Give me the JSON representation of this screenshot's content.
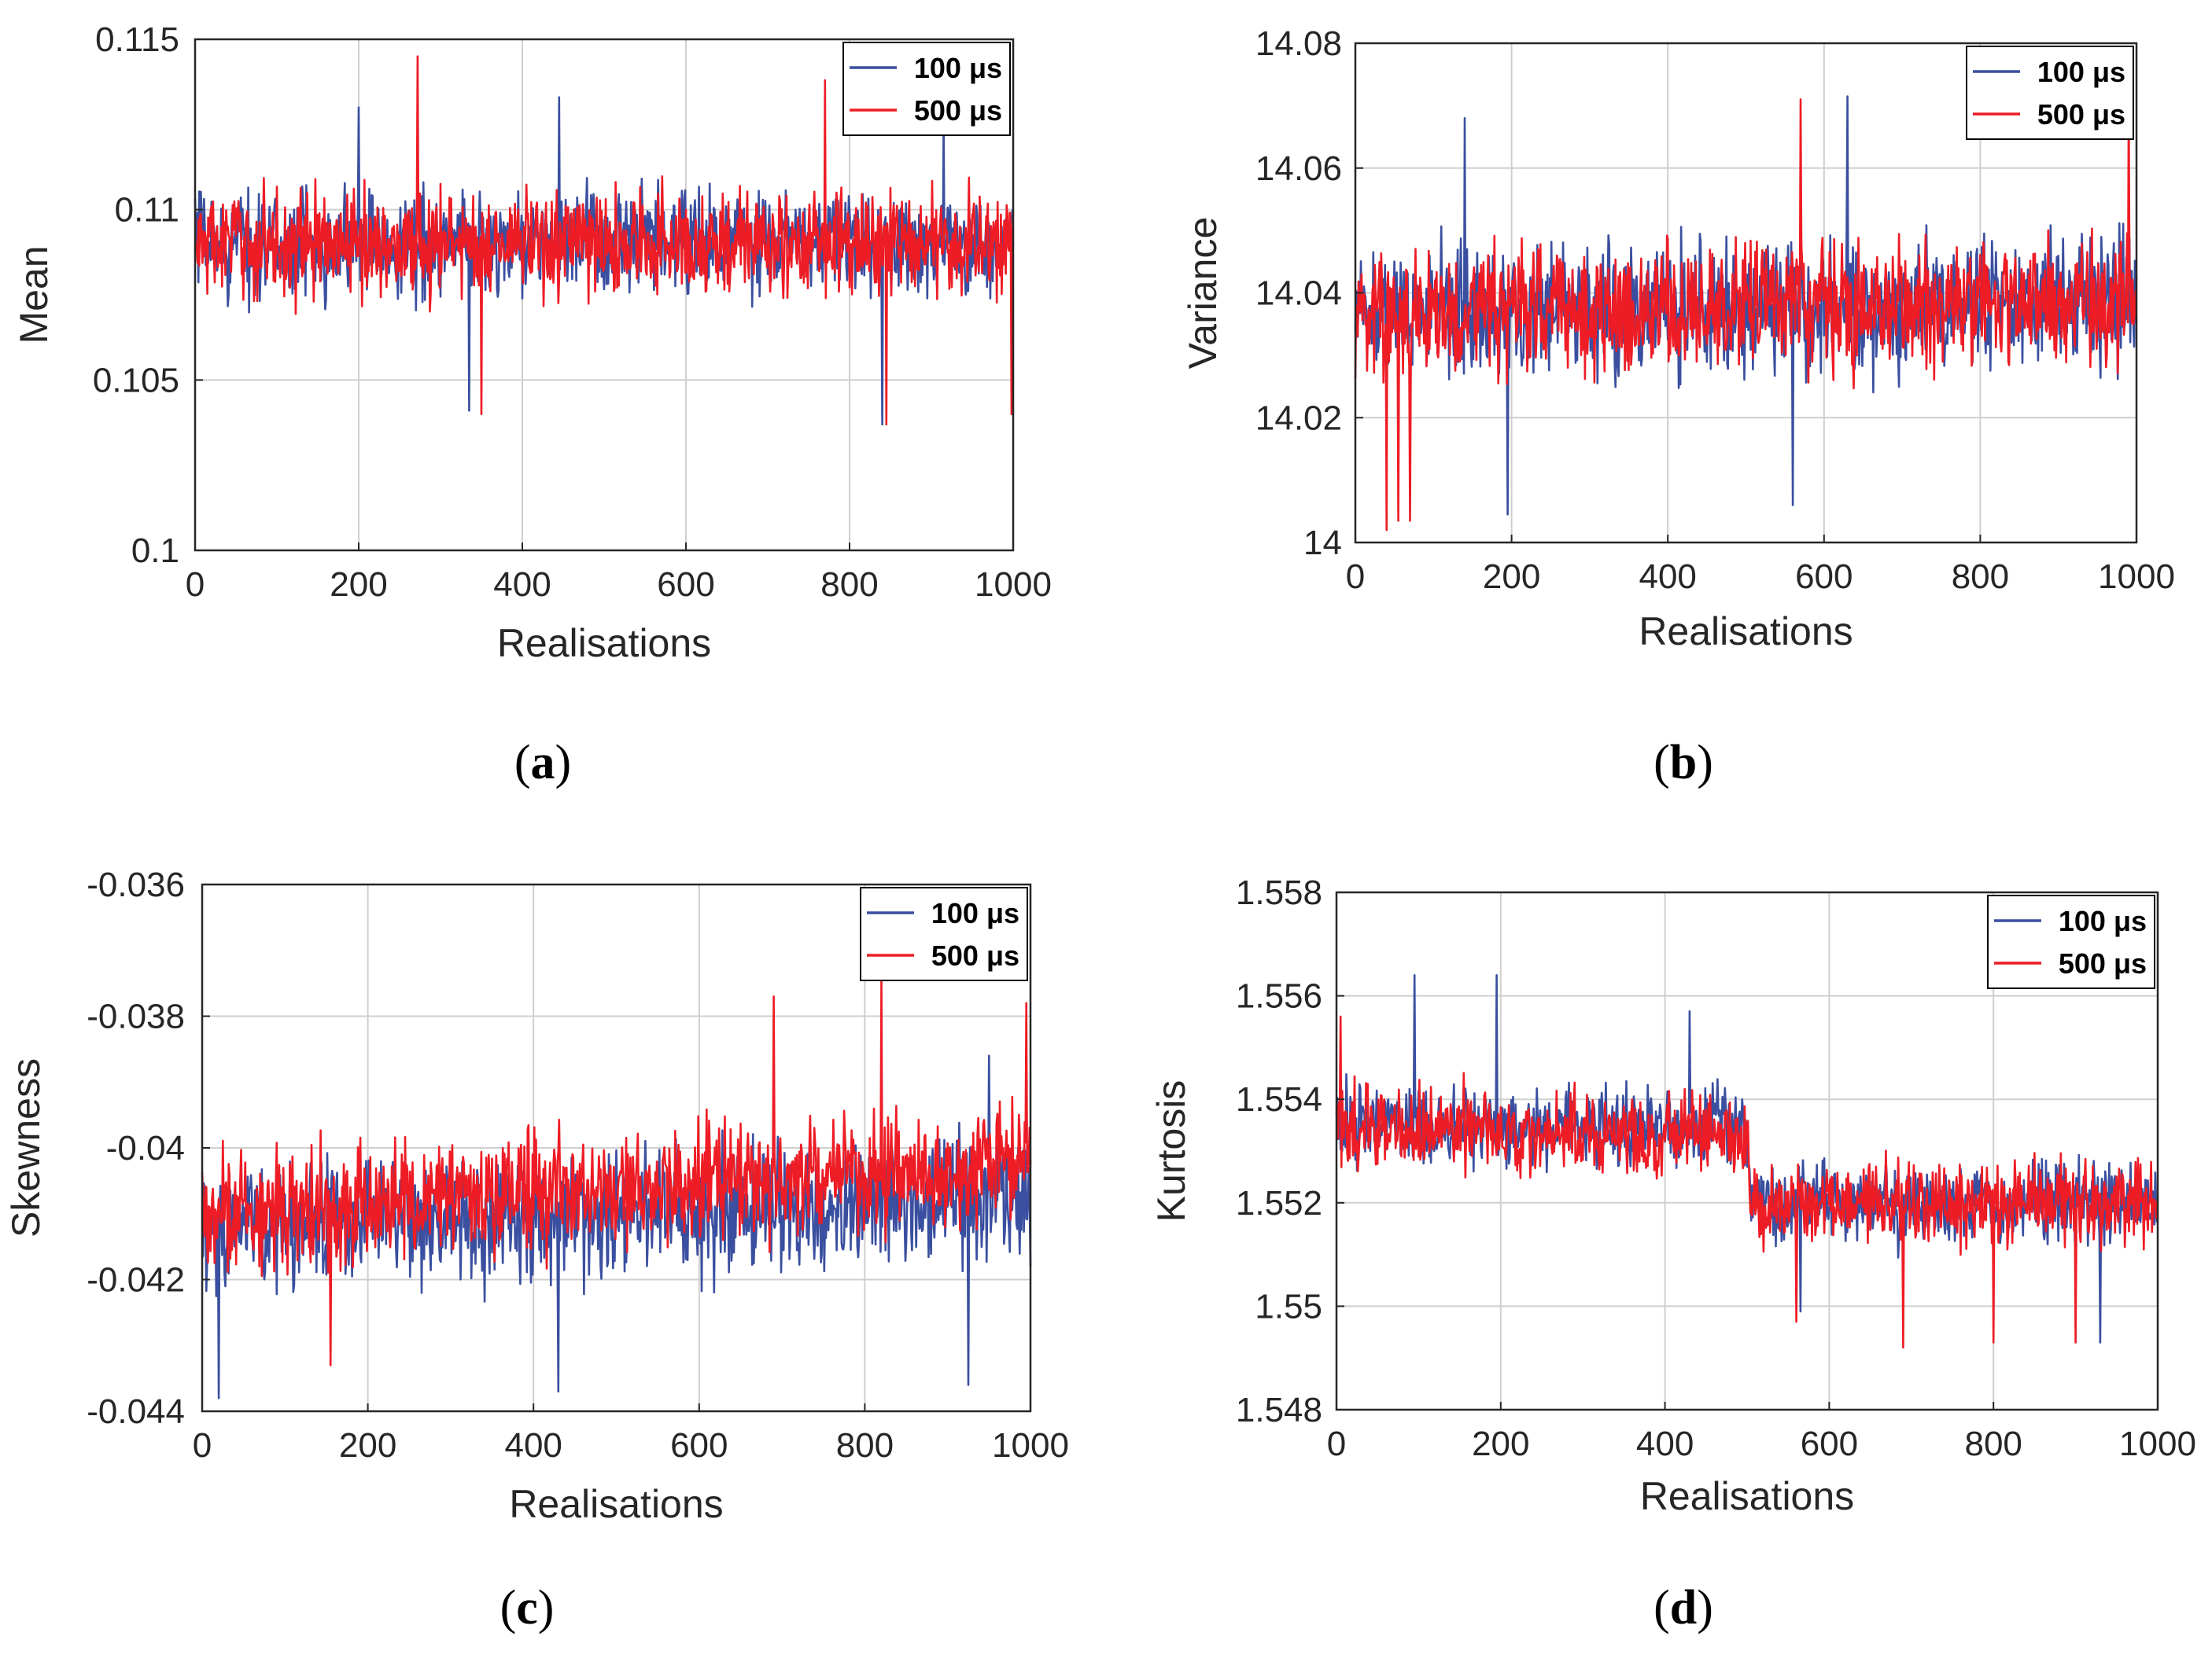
{
  "colors": {
    "series1": "#3a4fa0",
    "series2": "#ee1c25",
    "grid": "#cfcfcf",
    "axis": "#262626"
  },
  "captions": [
    "a",
    "b",
    "c",
    "d"
  ],
  "chart_data": [
    {
      "id": "a",
      "type": "line",
      "title": "",
      "xlabel": "Realisations",
      "ylabel": "Mean",
      "xlim": [
        0,
        1000
      ],
      "ylim": [
        0.1,
        0.115
      ],
      "xticks": [
        0,
        200,
        400,
        600,
        800,
        1000
      ],
      "xtick_labels": [
        "0",
        "200",
        "400",
        "600",
        "800",
        "1000"
      ],
      "yticks": [
        0.1,
        0.105,
        0.11,
        0.115
      ],
      "ytick_labels": [
        "0.1",
        "0.105",
        "0.11",
        "0.115"
      ],
      "legend_placement": "top-right",
      "series": [
        {
          "name": "100 μs",
          "base": [
            [
              0,
              0.109
            ],
            [
              1000,
              0.109
            ]
          ],
          "amp": 0.0014,
          "peaks": [
            [
              200,
              0.113
            ],
            [
              445,
              0.1133
            ],
            [
              915,
              0.1128
            ],
            [
              335,
              0.1041
            ],
            [
              840,
              0.1037
            ]
          ]
        },
        {
          "name": "500 μs",
          "base": [
            [
              0,
              0.109
            ],
            [
              1000,
              0.109
            ]
          ],
          "amp": 0.0014,
          "peaks": [
            [
              272,
              0.1145
            ],
            [
              770,
              0.1138
            ],
            [
              350,
              0.104
            ],
            [
              845,
              0.1037
            ],
            [
              998,
              0.104
            ]
          ]
        }
      ]
    },
    {
      "id": "b",
      "type": "line",
      "title": "",
      "xlabel": "Realisations",
      "ylabel": "Variance",
      "xlim": [
        0,
        1000
      ],
      "ylim": [
        14.0,
        14.08
      ],
      "xticks": [
        0,
        200,
        400,
        600,
        800,
        1000
      ],
      "xtick_labels": [
        "0",
        "200",
        "400",
        "600",
        "800",
        "1000"
      ],
      "yticks": [
        14.0,
        14.02,
        14.04,
        14.06,
        14.08
      ],
      "ytick_labels": [
        "14",
        "14.02",
        "14.04",
        "14.06",
        "14.08"
      ],
      "legend_placement": "top-right",
      "series": [
        {
          "name": "100 μs",
          "base": [
            [
              0,
              14.037
            ],
            [
              1000,
              14.039
            ]
          ],
          "amp": 0.0095,
          "peaks": [
            [
              140,
              14.068
            ],
            [
              630,
              14.0715
            ],
            [
              195,
              14.0045
            ],
            [
              560,
              14.006
            ]
          ]
        },
        {
          "name": "500 μs",
          "base": [
            [
              0,
              14.037
            ],
            [
              1000,
              14.039
            ]
          ],
          "amp": 0.0095,
          "peaks": [
            [
              40,
              14.002
            ],
            [
              55,
              14.0035
            ],
            [
              570,
              14.071
            ],
            [
              990,
              14.071
            ],
            [
              70,
              14.0035
            ]
          ]
        }
      ]
    },
    {
      "id": "c",
      "type": "line",
      "title": "",
      "xlabel": "Realisations",
      "ylabel": "Skewness",
      "xlim": [
        0,
        1000
      ],
      "ylim": [
        -0.044,
        -0.036
      ],
      "xticks": [
        0,
        200,
        400,
        600,
        800,
        1000
      ],
      "xtick_labels": [
        "0",
        "200",
        "400",
        "600",
        "800",
        "1000"
      ],
      "yticks": [
        -0.044,
        -0.042,
        -0.04,
        -0.038,
        -0.036
      ],
      "ytick_labels": [
        "-0.044",
        "-0.042",
        "-0.04",
        "-0.038",
        "-0.036"
      ],
      "legend_placement": "top-right",
      "series": [
        {
          "name": "100 μs",
          "base": [
            [
              0,
              -0.0412
            ],
            [
              1000,
              -0.0408
            ]
          ],
          "amp": 0.00085,
          "peaks": [
            [
              20,
              -0.0438
            ],
            [
              430,
              -0.0437
            ],
            [
              925,
              -0.0436
            ],
            [
              950,
              -0.0386
            ]
          ]
        },
        {
          "name": "500 μs",
          "base": [
            [
              0,
              -0.041
            ],
            [
              1000,
              -0.0402
            ]
          ],
          "amp": 0.0008,
          "peaks": [
            [
              690,
              -0.0377
            ],
            [
              820,
              -0.0374
            ],
            [
              155,
              -0.0433
            ],
            [
              995,
              -0.0378
            ]
          ]
        }
      ]
    },
    {
      "id": "d",
      "type": "line",
      "title": "",
      "xlabel": "Realisations",
      "ylabel": "Kurtosis",
      "xlim": [
        0,
        1000
      ],
      "ylim": [
        1.548,
        1.558
      ],
      "xticks": [
        0,
        200,
        400,
        600,
        800,
        1000
      ],
      "xtick_labels": [
        "0",
        "200",
        "400",
        "600",
        "800",
        "1000"
      ],
      "yticks": [
        1.548,
        1.55,
        1.552,
        1.554,
        1.556,
        1.558
      ],
      "ytick_labels": [
        "1.548",
        "1.55",
        "1.552",
        "1.554",
        "1.556",
        "1.558"
      ],
      "legend_placement": "top-right",
      "series": [
        {
          "name": "100 μs",
          "base": [
            [
              0,
              1.5535
            ],
            [
              500,
              1.5535
            ],
            [
              505,
              1.552
            ],
            [
              1000,
              1.552
            ]
          ],
          "amp": 0.0007,
          "peaks": [
            [
              95,
              1.5564
            ],
            [
              195,
              1.5564
            ],
            [
              430,
              1.5557
            ],
            [
              565,
              1.5499
            ],
            [
              930,
              1.5493
            ]
          ]
        },
        {
          "name": "500 μs",
          "base": [
            [
              0,
              1.5535
            ],
            [
              500,
              1.5533
            ],
            [
              505,
              1.552
            ],
            [
              1000,
              1.552
            ]
          ],
          "amp": 0.0007,
          "peaks": [
            [
              5,
              1.5556
            ],
            [
              560,
              1.5497
            ],
            [
              690,
              1.5492
            ],
            [
              800,
              1.5493
            ],
            [
              900,
              1.5493
            ]
          ]
        }
      ]
    }
  ]
}
